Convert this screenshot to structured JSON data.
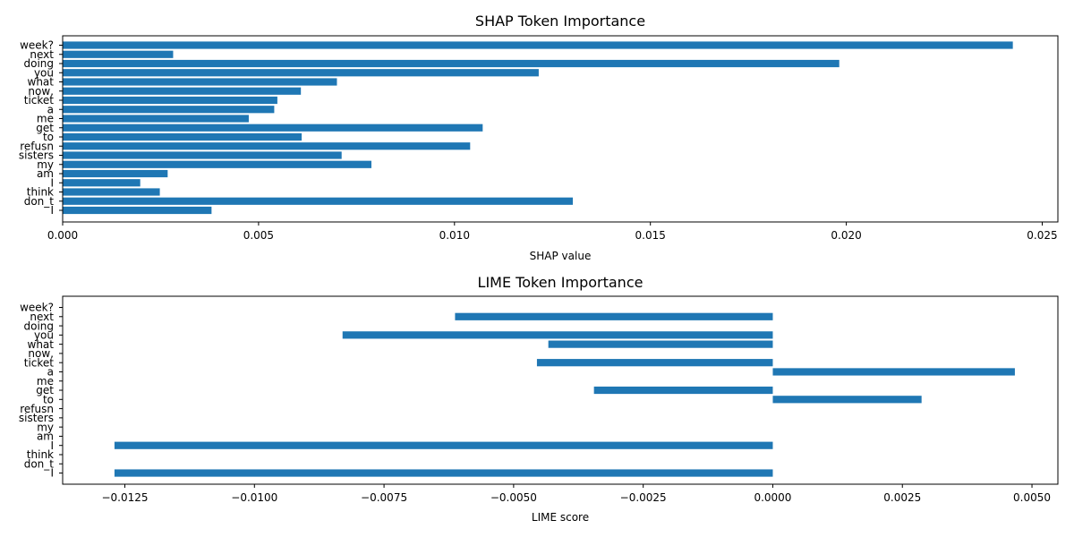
{
  "bar_color": "#1f77b4",
  "chart_data": [
    {
      "type": "bar",
      "orientation": "horizontal",
      "title": "SHAP Token Importance",
      "xlabel": "SHAP value",
      "xlim": [
        0,
        0.0254
      ],
      "xticks": [
        0,
        0.005,
        0.01,
        0.015,
        0.02,
        0.025
      ],
      "xtick_labels": [
        "0.000",
        "0.005",
        "0.010",
        "0.015",
        "0.020",
        "0.025"
      ],
      "categories": [
        "week?",
        "next",
        "doing",
        "you",
        "what",
        "now,",
        "ticket",
        "a",
        "me",
        "get",
        "to",
        "refusn",
        "sisters",
        "my",
        "am",
        "I",
        "think",
        "don_t",
        "I"
      ],
      "values": [
        0.02425,
        0.00282,
        0.01982,
        0.01215,
        0.007,
        0.00608,
        0.00548,
        0.0054,
        0.00475,
        0.01072,
        0.0061,
        0.0104,
        0.00712,
        0.00788,
        0.00268,
        0.00198,
        0.00248,
        0.01302,
        0.0038
      ],
      "grid": false
    },
    {
      "type": "bar",
      "orientation": "horizontal",
      "title": "LIME Token Importance",
      "xlabel": "LIME score",
      "xlim": [
        -0.0137,
        0.0055
      ],
      "xticks": [
        -0.0125,
        -0.01,
        -0.0075,
        -0.005,
        -0.0025,
        0,
        0.0025,
        0.005
      ],
      "xtick_labels": [
        "−0.0125",
        "−0.0100",
        "−0.0075",
        "−0.0050",
        "−0.0025",
        "0.0000",
        "0.0025",
        "0.0050"
      ],
      "categories": [
        "week?",
        "next",
        "doing",
        "you",
        "what",
        "now,",
        "ticket",
        "a",
        "me",
        "get",
        "to",
        "refusn",
        "sisters",
        "my",
        "am",
        "I",
        "think",
        "don_t",
        "I"
      ],
      "values": [
        0,
        -0.00613,
        0,
        -0.0083,
        -0.00433,
        0,
        -0.00455,
        0.00467,
        0,
        -0.00345,
        0.00287,
        0,
        0,
        0,
        0,
        -0.0127,
        0,
        0,
        -0.0127
      ],
      "grid": false
    }
  ]
}
